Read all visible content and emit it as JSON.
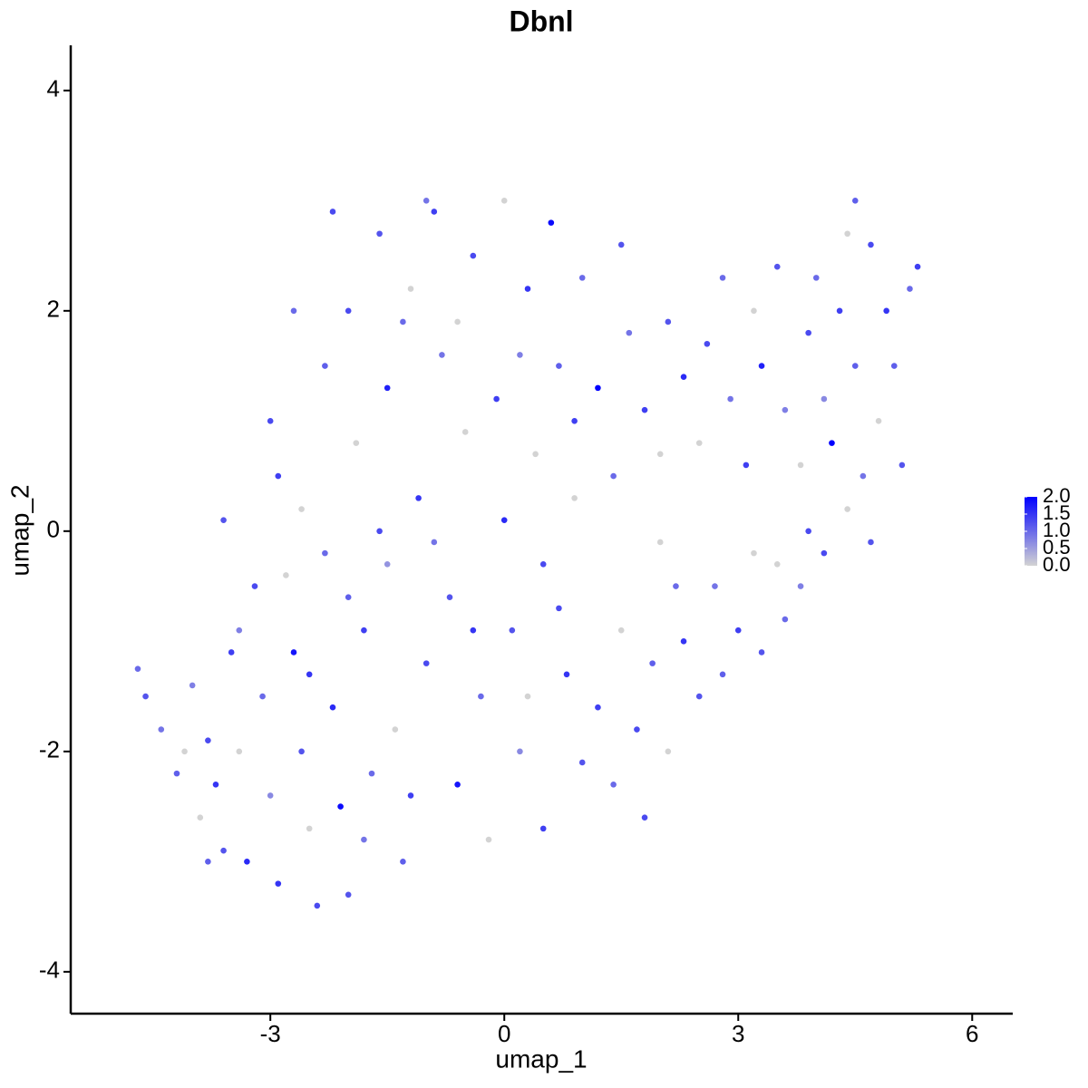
{
  "chart_data": {
    "type": "scatter",
    "title": "Dbnl",
    "x_label": "umap_1",
    "y_label": "umap_2",
    "xlim": [
      -5.56,
      6.52
    ],
    "ylim": [
      -4.38,
      4.41
    ],
    "xticks": [
      -3,
      0,
      3,
      6
    ],
    "yticks": [
      -4,
      -2,
      0,
      2,
      4
    ],
    "low_color": "#d3d3d3",
    "high_color": "#0000ff",
    "color_lim": [
      0,
      2
    ],
    "color_ticks": [
      {
        "value": 0,
        "label": "0.0"
      },
      0.5,
      {
        "value": 1,
        "label": "1.0"
      },
      1.5,
      {
        "value": 2,
        "label": "2.0"
      }
    ],
    "x": [
      -4.7,
      -4.6,
      -4.4,
      -4.2,
      -4.0,
      -3.9,
      -3.8,
      -3.7,
      -3.6,
      -3.5,
      -3.4,
      -3.3,
      -3.2,
      -3.1,
      -3.0,
      -2.9,
      -2.9,
      -2.8,
      -2.7,
      -2.6,
      -2.5,
      -2.4,
      -2.3,
      -2.3,
      -2.2,
      -2.1,
      -2.0,
      -2.0,
      -1.9,
      -1.8,
      -1.7,
      -1.6,
      -1.5,
      -1.5,
      -1.4,
      -1.3,
      -1.2,
      -1.1,
      -1.0,
      -0.9,
      -0.8,
      -0.7,
      -0.6,
      -0.5,
      -0.4,
      -0.3,
      -0.2,
      -0.1,
      0.0,
      0.0,
      0.1,
      0.2,
      0.3,
      0.4,
      0.5,
      0.5,
      0.6,
      0.7,
      0.8,
      0.9,
      1.0,
      1.0,
      -3.6,
      -3.4,
      -3.0,
      -2.7,
      -2.6,
      -2.5,
      -2.0,
      -1.8,
      -1.6,
      -1.3,
      -1.2,
      -0.9,
      -0.6,
      -0.4,
      0.2,
      0.3,
      0.7,
      0.9,
      -2.2,
      -1.0,
      -3.8,
      -4.1,
      1.2,
      1.4,
      1.6,
      1.8,
      2.0,
      2.1,
      2.3,
      2.5,
      2.6,
      2.8,
      2.9,
      3.1,
      3.2,
      3.3,
      3.5,
      3.6,
      3.8,
      3.9,
      4.0,
      4.1,
      4.2,
      4.3,
      4.4,
      4.5,
      4.6,
      4.7,
      4.8,
      4.9,
      5.0,
      5.1,
      5.2,
      5.3,
      4.5,
      3.9,
      3.5,
      1.5,
      2.0,
      1.2,
      1.4,
      1.5,
      1.7,
      1.9,
      2.1,
      2.3,
      2.5,
      2.7,
      2.8,
      3.0,
      3.2,
      3.3,
      3.6,
      3.8,
      4.1,
      4.4,
      4.7,
      2.2,
      1.8
    ],
    "y": [
      -1.25,
      -1.5,
      -1.8,
      -2.2,
      -1.4,
      -2.6,
      -1.9,
      -2.3,
      -2.9,
      -1.1,
      -2.0,
      -3.0,
      -0.5,
      -1.5,
      -2.4,
      -3.2,
      0.5,
      -0.4,
      -1.1,
      -2.0,
      -2.7,
      -3.4,
      1.5,
      -0.2,
      -1.6,
      -2.5,
      -3.3,
      2.0,
      0.8,
      -0.9,
      -2.2,
      2.7,
      1.3,
      -0.3,
      -1.8,
      -3.0,
      2.2,
      0.3,
      -1.2,
      2.9,
      1.6,
      -0.6,
      -2.3,
      0.9,
      2.5,
      -1.5,
      -2.8,
      1.2,
      3.0,
      0.1,
      -0.9,
      -2.0,
      2.2,
      0.7,
      -0.3,
      -2.7,
      2.8,
      1.5,
      -1.3,
      0.3,
      -2.1,
      2.3,
      0.1,
      -0.9,
      1.0,
      2.0,
      0.2,
      -1.3,
      -0.6,
      -2.8,
      0.0,
      1.9,
      -2.4,
      -0.1,
      1.9,
      -0.9,
      1.6,
      -1.5,
      -0.7,
      1.0,
      2.9,
      3.0,
      -3.0,
      -2.0,
      1.3,
      0.5,
      1.8,
      1.1,
      0.7,
      1.9,
      1.4,
      0.8,
      1.7,
      2.3,
      1.2,
      0.6,
      2.0,
      1.5,
      2.4,
      1.1,
      0.6,
      1.8,
      2.3,
      1.2,
      0.8,
      2.0,
      2.7,
      1.5,
      0.5,
      2.6,
      1.0,
      2.0,
      1.5,
      0.6,
      2.2,
      2.4,
      3.0,
      0.0,
      -0.3,
      2.6,
      -0.1,
      -1.6,
      -2.3,
      -0.9,
      -1.8,
      -1.2,
      -2.0,
      -1.0,
      -1.5,
      -0.5,
      -1.3,
      -0.9,
      -0.2,
      -1.1,
      -0.8,
      -0.5,
      -0.2,
      0.2,
      -0.1,
      -0.5,
      -2.6
    ],
    "color_values": [
      1,
      1.2,
      0.9,
      1.1,
      0.8,
      0,
      1.3,
      1.5,
      1.2,
      1.4,
      0,
      1.6,
      1.3,
      1.0,
      0.7,
      1.5,
      1.4,
      0,
      1.8,
      1.2,
      0,
      1.3,
      1.1,
      1.0,
      1.6,
      1.9,
      1.2,
      1.3,
      0,
      1.4,
      1.0,
      1.2,
      1.7,
      0.6,
      0,
      1.1,
      0,
      1.5,
      1.3,
      1.4,
      0.9,
      1.2,
      1.8,
      0,
      1.3,
      1.0,
      0,
      1.4,
      0,
      1.6,
      1.2,
      0.7,
      1.5,
      0,
      1.3,
      1.4,
      1.9,
      1.1,
      1.5,
      0,
      1.2,
      1.0,
      1.2,
      0.8,
      1.3,
      1.0,
      0,
      1.5,
      1.1,
      0.9,
      1.3,
      1.0,
      1.4,
      0.9,
      0,
      1.5,
      0.8,
      0,
      1.3,
      1.4,
      1.3,
      0.9,
      1.1,
      0,
      2.0,
      1.0,
      0.9,
      1.4,
      0,
      1.2,
      1.6,
      0,
      1.3,
      1.0,
      0.9,
      1.4,
      0,
      1.7,
      1.2,
      0.8,
      0,
      1.3,
      1.0,
      0.7,
      2.0,
      1.4,
      0,
      1.1,
      0.9,
      1.3,
      0,
      1.5,
      1.1,
      1.2,
      1.0,
      1.4,
      1.1,
      1.3,
      0,
      1.2,
      0,
      1.4,
      1.0,
      0,
      1.3,
      1.1,
      0,
      1.5,
      1.2,
      0.9,
      1.1,
      1.4,
      0,
      1.2,
      1.0,
      0.8,
      1.3,
      0,
      1.2,
      1.0,
      1.3
    ]
  }
}
